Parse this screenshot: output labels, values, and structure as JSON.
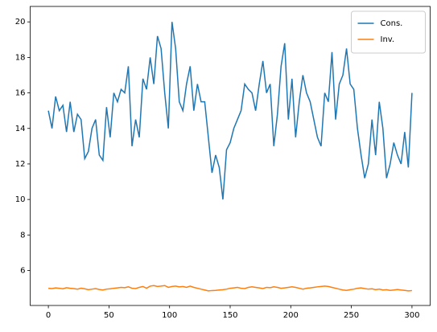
{
  "chart_data": {
    "type": "line",
    "x": [
      0,
      3,
      6,
      9,
      12,
      15,
      18,
      21,
      24,
      27,
      30,
      33,
      36,
      39,
      42,
      45,
      48,
      51,
      54,
      57,
      60,
      63,
      66,
      69,
      72,
      75,
      78,
      81,
      84,
      87,
      90,
      93,
      96,
      99,
      102,
      105,
      108,
      111,
      114,
      117,
      120,
      123,
      126,
      129,
      132,
      135,
      138,
      141,
      144,
      147,
      150,
      153,
      156,
      159,
      162,
      165,
      168,
      171,
      174,
      177,
      180,
      183,
      186,
      189,
      192,
      195,
      198,
      201,
      204,
      207,
      210,
      213,
      216,
      219,
      222,
      225,
      228,
      231,
      234,
      237,
      240,
      243,
      246,
      249,
      252,
      255,
      258,
      261,
      264,
      267,
      270,
      273,
      276,
      279,
      282,
      285,
      288,
      291,
      294,
      297,
      300
    ],
    "series": [
      {
        "name": "Cons.",
        "color": "#1f77b4",
        "values": [
          15.0,
          14.0,
          15.8,
          15.0,
          15.3,
          13.8,
          15.5,
          13.8,
          14.8,
          14.5,
          12.3,
          12.7,
          14.0,
          14.5,
          12.5,
          12.2,
          15.2,
          13.5,
          16.0,
          15.5,
          16.2,
          16.0,
          17.5,
          13.0,
          14.5,
          13.5,
          16.8,
          16.2,
          18.0,
          16.5,
          19.2,
          18.5,
          16.0,
          14.0,
          20.0,
          18.5,
          15.5,
          15.0,
          16.5,
          17.5,
          15.0,
          16.5,
          15.5,
          15.5,
          13.5,
          11.5,
          12.5,
          11.8,
          10.0,
          12.8,
          13.2,
          14.0,
          14.5,
          15.0,
          16.5,
          16.2,
          16.0,
          15.0,
          16.5,
          17.8,
          16.0,
          16.5,
          13.0,
          14.8,
          17.5,
          18.8,
          14.5,
          16.8,
          13.5,
          15.5,
          17.0,
          16.0,
          15.5,
          14.5,
          13.5,
          13.0,
          16.0,
          15.5,
          18.3,
          14.5,
          16.5,
          17.0,
          18.5,
          16.5,
          16.2,
          14.0,
          12.5,
          11.2,
          12.0,
          14.5,
          12.5,
          15.5,
          14.0,
          11.2,
          12.0,
          13.2,
          12.5,
          12.0,
          13.8,
          11.8,
          16.0
        ]
      },
      {
        "name": "Inv.",
        "color": "#ff7f0e",
        "values": [
          5.0,
          4.98,
          5.02,
          5.0,
          4.97,
          5.03,
          5.0,
          4.98,
          4.95,
          5.0,
          4.97,
          4.92,
          4.95,
          4.98,
          4.93,
          4.9,
          4.95,
          4.97,
          5.0,
          5.02,
          5.05,
          5.03,
          5.08,
          5.0,
          4.98,
          5.05,
          5.1,
          5.0,
          5.12,
          5.15,
          5.1,
          5.12,
          5.15,
          5.05,
          5.1,
          5.12,
          5.08,
          5.1,
          5.05,
          5.12,
          5.05,
          5.0,
          4.95,
          4.9,
          4.85,
          4.87,
          4.88,
          4.9,
          4.92,
          4.95,
          5.0,
          5.02,
          5.05,
          5.0,
          4.98,
          5.05,
          5.08,
          5.05,
          5.02,
          4.98,
          5.05,
          5.03,
          5.08,
          5.05,
          5.0,
          5.02,
          5.05,
          5.08,
          5.05,
          5.0,
          4.95,
          5.0,
          5.02,
          5.05,
          5.08,
          5.1,
          5.12,
          5.1,
          5.05,
          5.0,
          4.95,
          4.9,
          4.88,
          4.92,
          4.95,
          5.0,
          5.02,
          4.98,
          4.95,
          4.97,
          4.92,
          4.95,
          4.9,
          4.92,
          4.88,
          4.9,
          4.93,
          4.9,
          4.88,
          4.85,
          4.87
        ]
      }
    ],
    "xlim": [
      -15,
      315
    ],
    "xticks": [
      0,
      50,
      100,
      150,
      200,
      250,
      300
    ],
    "ylim": [
      4.03,
      20.87
    ],
    "yticks": [
      6,
      8,
      10,
      12,
      14,
      16,
      18,
      20
    ],
    "legend": "upper right"
  }
}
